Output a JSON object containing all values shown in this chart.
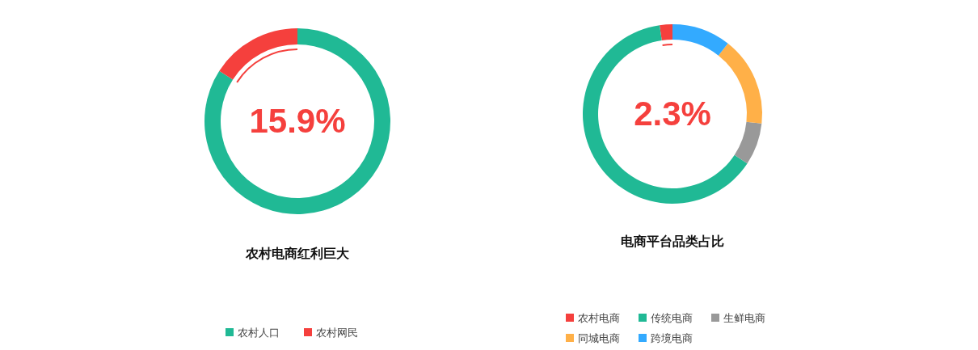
{
  "chart_data": [
    {
      "type": "donut",
      "title": "农村电商红利巨大",
      "categories": [
        "农村人口",
        "农村网民"
      ],
      "values": [
        84.1,
        15.9
      ],
      "colors": [
        "#20b995",
        "#f5403d"
      ],
      "annotations": [
        "15.9%"
      ],
      "legend": "bottom"
    },
    {
      "type": "donut",
      "title": "电商平台品类占比",
      "categories": [
        "农村电商",
        "传统电商",
        "生鲜电商",
        "同城电商",
        "跨境电商"
      ],
      "values": [
        2.3,
        63.4,
        7.6,
        16.1,
        10.6
      ],
      "colors": [
        "#f5403d",
        "#20b995",
        "#999999",
        "#ffb048",
        "#33aaff"
      ],
      "annotations": [
        "2.3%"
      ],
      "legend": "bottom"
    }
  ]
}
